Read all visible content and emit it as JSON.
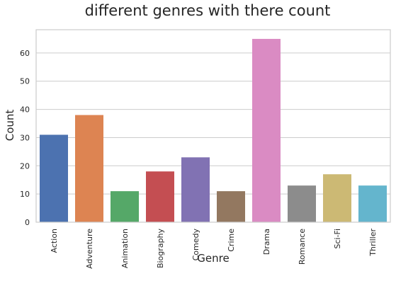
{
  "chart_data": {
    "type": "bar",
    "title": "different genres with there count",
    "xlabel": "Genre",
    "ylabel": "Count",
    "categories": [
      "Action",
      "Adventure",
      "Animation",
      "Biography",
      "Comedy",
      "Crime",
      "Drama",
      "Romance",
      "Sci-Fi",
      "Thriller"
    ],
    "values": [
      31,
      38,
      11,
      18,
      23,
      11,
      65,
      13,
      17,
      13
    ],
    "colors": [
      "#4c72b0",
      "#dd8452",
      "#55a868",
      "#c44e52",
      "#8172b3",
      "#937860",
      "#da8bc3",
      "#8c8c8c",
      "#ccb974",
      "#64b5cd"
    ],
    "ylim": [
      0,
      68.25
    ],
    "yticks": [
      0,
      10,
      20,
      30,
      40,
      50,
      60
    ],
    "grid": true,
    "grid_axis": "y",
    "legend": false
  }
}
